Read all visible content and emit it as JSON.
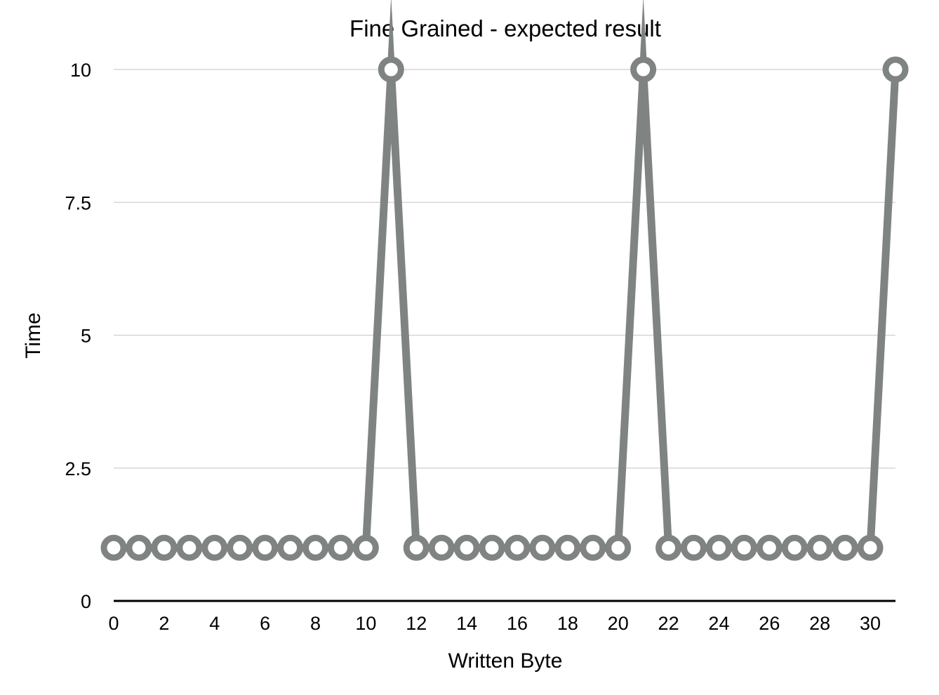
{
  "chart_data": {
    "type": "line",
    "title": "Fine Grained - expected result",
    "xlabel": "Written Byte",
    "ylabel": "Time",
    "x": [
      0,
      1,
      2,
      3,
      4,
      5,
      6,
      7,
      8,
      9,
      10,
      11,
      12,
      13,
      14,
      15,
      16,
      17,
      18,
      19,
      20,
      21,
      22,
      23,
      24,
      25,
      26,
      27,
      28,
      29,
      30,
      31
    ],
    "x_ticks": [
      0,
      2,
      4,
      6,
      8,
      10,
      12,
      14,
      16,
      18,
      20,
      22,
      24,
      26,
      28,
      30
    ],
    "y_ticks": [
      0,
      2.5,
      5,
      7.5,
      10
    ],
    "xlim": [
      0,
      31
    ],
    "ylim": [
      0,
      10
    ],
    "grid": true,
    "legend": "none",
    "series": [
      {
        "values": [
          1,
          1,
          1,
          1,
          1,
          1,
          1,
          1,
          1,
          1,
          1,
          10,
          1,
          1,
          1,
          1,
          1,
          1,
          1,
          1,
          1,
          10,
          1,
          1,
          1,
          1,
          1,
          1,
          1,
          1,
          1,
          10
        ],
        "color": "#7f8482",
        "marker": "hollow-circle"
      }
    ],
    "colors": {
      "series": "#7f8482",
      "gridline": "#cfcfcf",
      "axis": "#000000"
    }
  }
}
